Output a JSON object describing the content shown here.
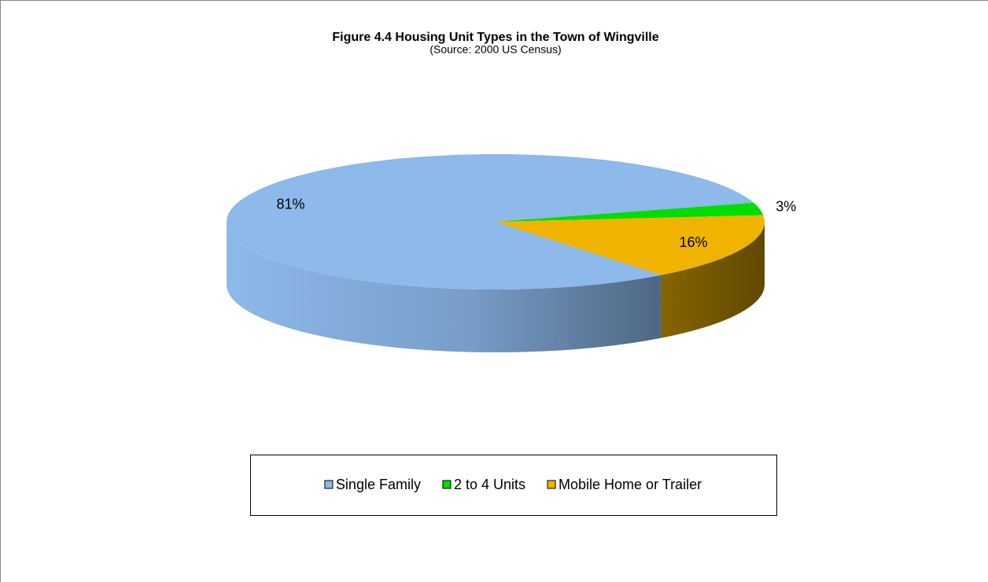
{
  "chart_data": {
    "type": "pie",
    "title": "Figure 4.4 Housing Unit Types in the Town of Wingville",
    "subtitle": "(Source: 2000 US Census)",
    "categories": [
      "Single Family",
      "2 to 4 Units",
      "Mobile Home or Trailer"
    ],
    "values": [
      81,
      3,
      16
    ],
    "value_labels": [
      "81%",
      "3%",
      "16%"
    ],
    "colors": [
      "#8db9eb",
      "#00dd00",
      "#f0b400"
    ],
    "legend": "bottom"
  }
}
